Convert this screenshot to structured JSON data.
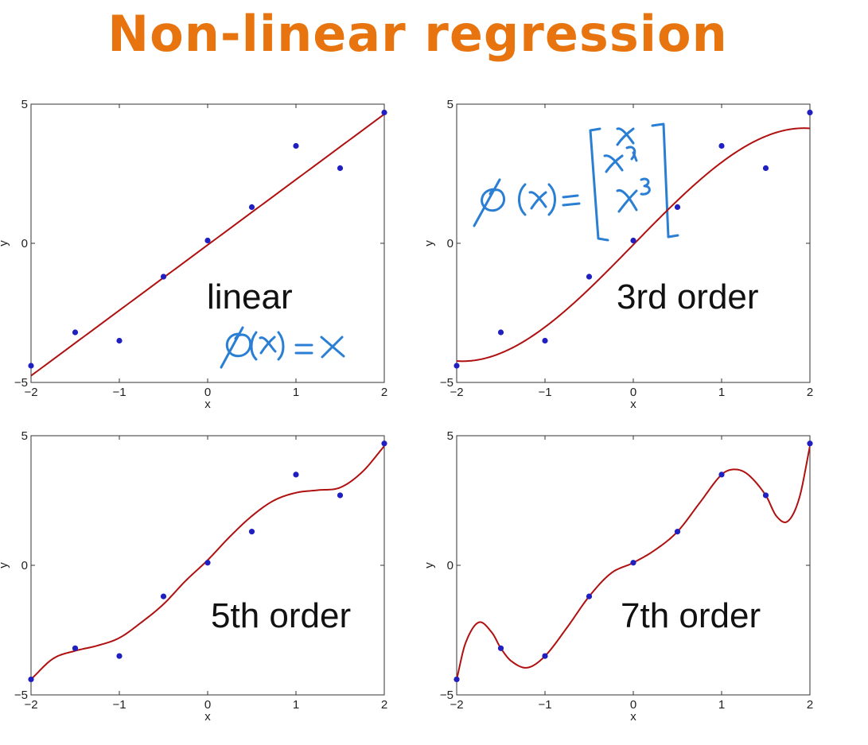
{
  "slide": {
    "title": "Non-linear regression"
  },
  "colors": {
    "title": "#e8740f",
    "points": "#2020c0",
    "fit": "#b01010",
    "ink": "#2a7fd4"
  },
  "chart_data": [
    {
      "type": "line",
      "label": "linear",
      "xlabel": "x",
      "ylabel": "y",
      "xlim": [
        -2,
        2
      ],
      "ylim": [
        -5,
        5
      ],
      "xticks": [
        "-2",
        "-1",
        "0",
        "1",
        "2"
      ],
      "yticks": [
        "-5",
        "0",
        "5"
      ],
      "points": {
        "x": [
          -2,
          -1.5,
          -1,
          -0.5,
          0,
          0.5,
          1,
          1.5,
          2
        ],
        "y": [
          -4.4,
          -3.2,
          -3.5,
          -1.2,
          0.1,
          1.3,
          3.5,
          2.7,
          4.7
        ]
      },
      "fit": {
        "kind": "polynomial",
        "coeffs": [
          -0.06,
          2.35
        ]
      },
      "annotation": "φ(x) = x"
    },
    {
      "type": "line",
      "label": "3rd order",
      "xlabel": "x",
      "ylabel": "y",
      "xlim": [
        -2,
        2
      ],
      "ylim": [
        -5,
        5
      ],
      "xticks": [
        "-2",
        "-1",
        "0",
        "1",
        "2"
      ],
      "yticks": [
        "-5",
        "0",
        "5"
      ],
      "points": {
        "x": [
          -2,
          -1.5,
          -1,
          -0.5,
          0,
          0.5,
          1,
          1.5,
          2
        ],
        "y": [
          -4.4,
          -3.2,
          -3.5,
          -1.2,
          0.1,
          1.3,
          3.5,
          2.7,
          4.7
        ]
      },
      "fit": {
        "kind": "polynomial",
        "coeffs": [
          -0.05,
          3.25,
          0,
          -0.29
        ]
      },
      "annotation": "φ(x) = [x, x², x³]"
    },
    {
      "type": "line",
      "label": "5th order",
      "xlabel": "x",
      "ylabel": "y",
      "xlim": [
        -2,
        2
      ],
      "ylim": [
        -5,
        5
      ],
      "xticks": [
        "-2",
        "-1",
        "0",
        "1",
        "2"
      ],
      "yticks": [
        "-5",
        "0",
        "5"
      ],
      "points": {
        "x": [
          -2,
          -1.5,
          -1,
          -0.5,
          0,
          0.5,
          1,
          1.5,
          2
        ],
        "y": [
          -4.4,
          -3.2,
          -3.5,
          -1.2,
          0.1,
          1.3,
          3.5,
          2.7,
          4.7
        ]
      },
      "fit": {
        "kind": "spline",
        "x": [
          -2,
          -1.75,
          -1.5,
          -1.25,
          -1,
          -0.75,
          -0.5,
          -0.25,
          0,
          0.25,
          0.5,
          0.75,
          1,
          1.25,
          1.5,
          1.75,
          2
        ],
        "y": [
          -4.4,
          -3.6,
          -3.3,
          -3.1,
          -2.8,
          -2.2,
          -1.5,
          -0.6,
          0.2,
          1.1,
          1.9,
          2.5,
          2.8,
          2.9,
          3.0,
          3.6,
          4.6
        ]
      }
    },
    {
      "type": "line",
      "label": "7th order",
      "xlabel": "x",
      "ylabel": "y",
      "xlim": [
        -2,
        2
      ],
      "ylim": [
        -5,
        5
      ],
      "xticks": [
        "-2",
        "-1",
        "0",
        "1",
        "2"
      ],
      "yticks": [
        "-5",
        "0",
        "5"
      ],
      "points": {
        "x": [
          -2,
          -1.5,
          -1,
          -0.5,
          0,
          0.5,
          1,
          1.5,
          2
        ],
        "y": [
          -4.4,
          -3.2,
          -3.5,
          -1.2,
          0.1,
          1.3,
          3.5,
          2.7,
          4.7
        ]
      },
      "fit": {
        "kind": "spline",
        "x": [
          -2,
          -1.9,
          -1.75,
          -1.6,
          -1.5,
          -1.38,
          -1.2,
          -1.0,
          -0.75,
          -0.5,
          -0.25,
          0,
          0.25,
          0.5,
          0.75,
          1.0,
          1.15,
          1.3,
          1.5,
          1.62,
          1.75,
          1.88,
          2
        ],
        "y": [
          -4.4,
          -3.0,
          -2.2,
          -2.6,
          -3.2,
          -3.7,
          -3.95,
          -3.5,
          -2.4,
          -1.2,
          -0.3,
          0.1,
          0.6,
          1.3,
          2.4,
          3.5,
          3.7,
          3.5,
          2.7,
          1.9,
          1.7,
          2.6,
          4.6
        ]
      }
    }
  ]
}
